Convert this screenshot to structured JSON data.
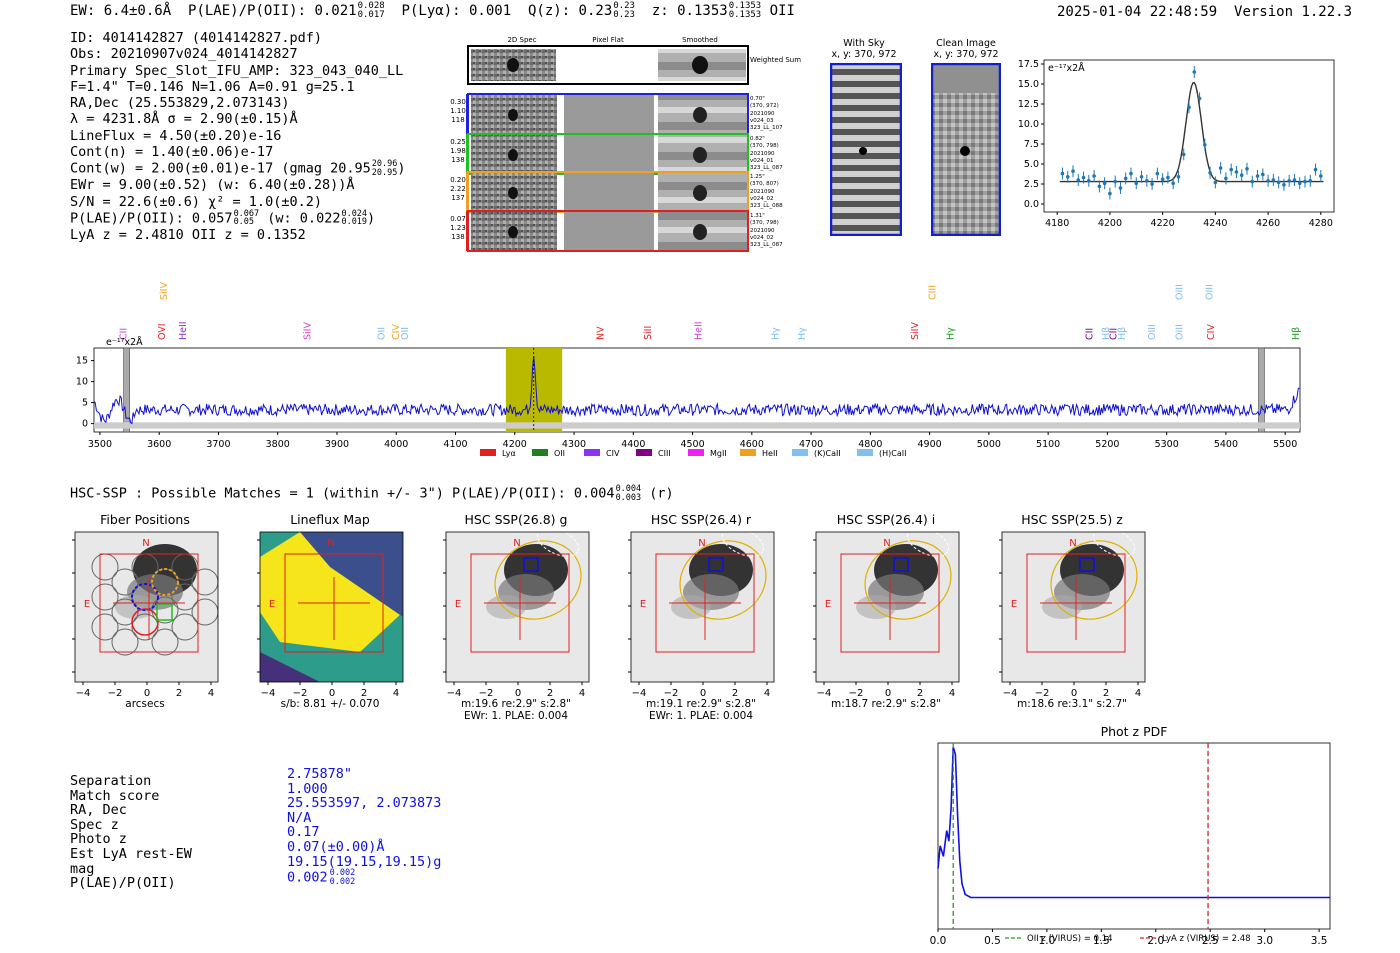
{
  "header": {
    "ew": "EW: 6.4±0.6Å",
    "plae": "P(LAE)/P(OII): 0.021",
    "plae_sup": "0.028",
    "plae_sub": "0.017",
    "plya": "P(Lyα): 0.001",
    "qz": "Q(z): 0.23",
    "qz_sup": "0.23",
    "qz_sub": "0.23",
    "z": "z: 0.1353",
    "z_sup": "0.1353",
    "z_sub": "0.1353",
    "z_line": "OII",
    "timestamp": "2025-01-04 22:48:59",
    "version": "Version 1.22.3"
  },
  "info": {
    "id": "ID: 4014142827 (4014142827.pdf)",
    "obs": "Obs: 20210907v024_4014142827",
    "primary": "Primary Spec_Slot_IFU_AMP: 323_043_040_LL",
    "fit": "F=1.4\"  T=0.146  N=1.06  A=0.91  g=25.1",
    "radec": "RA,Dec (25.553829,2.073143)",
    "lambda": "λ = 4231.8Å  σ = 2.90(±0.15)Å",
    "lineflux": "LineFlux = 4.50(±0.20)e-16",
    "contn": "Cont(n) = 1.40(±0.06)e-17",
    "contw": "Cont(w) = 2.00(±0.01)e-17 (gmag 20.95",
    "contw_sup": "20.96",
    "contw_sub": "20.95",
    "ewr": "EWr = 9.00(±0.52) (w: 6.40(±0.28))Å",
    "sn": "S/N = 22.6(±0.6)  χ² = 1.0(±0.2)",
    "plae": "P(LAE)/P(OII): 0.057",
    "plae_sup": "0.067",
    "plae_sub": "0.05",
    "plae_w": "(w: 0.022",
    "plae_w_sup": "0.024",
    "plae_w_sub": "0.019",
    "lyaz": "LyA z = 2.4810   OII z = 0.1352"
  },
  "cutouts_2d": {
    "col_titles": [
      "2D Spec",
      "Pixel Flat",
      "Smoothed"
    ],
    "weighted_sum": "Weighted Sum",
    "rows": [
      {
        "v1": "0.30",
        "v2": "1.10",
        "v3": "118",
        "r1": "0.70\"",
        "r2": "(370, 972)",
        "r3": "2021090",
        "r4": "v024_03",
        "r5": "323_LL_107",
        "color": "#2020e0"
      },
      {
        "v1": "0.25",
        "v2": "1.98",
        "v3": "138",
        "r1": "0.82\"",
        "r2": "(370, 798)",
        "r3": "2021090",
        "r4": "v024_01",
        "r5": "323_LL_087",
        "color": "#20c020"
      },
      {
        "v1": "0.20",
        "v2": "2.22",
        "v3": "137",
        "r1": "1.25\"",
        "r2": "(370, 807)",
        "r3": "2021090",
        "r4": "v024_02",
        "r5": "323_LL_088",
        "color": "#f0a020"
      },
      {
        "v1": "0.07",
        "v2": "1.23",
        "v3": "138",
        "r1": "1.31\"",
        "r2": "(370, 798)",
        "r3": "2021090",
        "r4": "v024_02",
        "r5": "323_LL_087",
        "color": "#e02020"
      }
    ]
  },
  "sky": {
    "with_sky_title": "With Sky",
    "with_sky_coords": "x, y: 370, 972",
    "clean_title": "Clean Image",
    "clean_coords": "x, y: 370, 972"
  },
  "line_fit": {
    "ylabel": "e⁻¹⁷x2Å",
    "yticks": [
      "0.0",
      "2.5",
      "5.0",
      "7.5",
      "10.0",
      "12.5",
      "15.0",
      "17.5"
    ],
    "xticks": [
      "4180",
      "4200",
      "4220",
      "4240",
      "4260",
      "4280"
    ]
  },
  "spectrum": {
    "ylabel": "e⁻¹⁷x2Å",
    "yticks": [
      "0",
      "5",
      "10",
      "15"
    ],
    "xticks": [
      "3500",
      "3600",
      "3700",
      "3800",
      "3900",
      "4000",
      "4100",
      "4200",
      "4300",
      "4400",
      "4500",
      "4600",
      "4700",
      "4800",
      "4900",
      "5000",
      "5100",
      "5200",
      "5300",
      "5400",
      "5500"
    ],
    "lines": [
      {
        "name": "CII",
        "color": "#d040d0",
        "wl": 3540,
        "row": 1
      },
      {
        "name": "SiIV",
        "color": "#f0a020",
        "wl": 3608,
        "row": 0
      },
      {
        "name": "OVI",
        "color": "#e02020",
        "wl": 3605,
        "row": 1
      },
      {
        "name": "HeII",
        "color": "#9030c0",
        "wl": 3640,
        "row": 1
      },
      {
        "name": "SiIV",
        "color": "#d040d0",
        "wl": 3850,
        "row": 1
      },
      {
        "name": "OII",
        "color": "#80c0f0",
        "wl": 3975,
        "row": 1
      },
      {
        "name": "CIV",
        "color": "#f0a020",
        "wl": 4000,
        "row": 1
      },
      {
        "name": "OII",
        "color": "#80c0f0",
        "wl": 4015,
        "row": 1
      },
      {
        "name": "NV",
        "color": "#e02020",
        "wl": 4345,
        "row": 1
      },
      {
        "name": "SiII",
        "color": "#e02020",
        "wl": 4425,
        "row": 1
      },
      {
        "name": "HeII",
        "color": "#d040d0",
        "wl": 4510,
        "row": 1
      },
      {
        "name": "Hγ",
        "color": "#80c0f0",
        "wl": 4640,
        "row": 1
      },
      {
        "name": "Hγ",
        "color": "#80c0f0",
        "wl": 4685,
        "row": 1
      },
      {
        "name": "SiIV",
        "color": "#e02020",
        "wl": 4875,
        "row": 1
      },
      {
        "name": "CIII",
        "color": "#f0a020",
        "wl": 4905,
        "row": 0
      },
      {
        "name": "Hγ",
        "color": "#20a020",
        "wl": 4935,
        "row": 1
      },
      {
        "name": "CII",
        "color": "#800080",
        "wl": 5170,
        "row": 1
      },
      {
        "name": "Hβ",
        "color": "#80c0f0",
        "wl": 5198,
        "row": 1
      },
      {
        "name": "CII",
        "color": "#800080",
        "wl": 5210,
        "row": 1
      },
      {
        "name": "Hβ",
        "color": "#80c0f0",
        "wl": 5225,
        "row": 1
      },
      {
        "name": "OIII",
        "color": "#80c0f0",
        "wl": 5275,
        "row": 1
      },
      {
        "name": "OIII",
        "color": "#80c0f0",
        "wl": 5322,
        "row": 0
      },
      {
        "name": "OIII",
        "color": "#80c0f0",
        "wl": 5322,
        "row": 1
      },
      {
        "name": "OIII",
        "color": "#80c0f0",
        "wl": 5372,
        "row": 0
      },
      {
        "name": "CIV",
        "color": "#e02020",
        "wl": 5375,
        "row": 1
      },
      {
        "name": "Hβ",
        "color": "#20a020",
        "wl": 5518,
        "row": 1
      }
    ],
    "legend": [
      {
        "name": "Lyα",
        "color": "#e02020"
      },
      {
        "name": "OII",
        "color": "#208020"
      },
      {
        "name": "CIV",
        "color": "#9030f0"
      },
      {
        "name": "CIII",
        "color": "#800080"
      },
      {
        "name": "MgII",
        "color": "#f020f0"
      },
      {
        "name": "HeII",
        "color": "#f0a020"
      },
      {
        "name": "(K)CaII",
        "color": "#80c0f0"
      },
      {
        "name": "(H)CaII",
        "color": "#80c0f0"
      }
    ]
  },
  "hsc": {
    "header": "HSC-SSP : Possible Matches = 1 (within +/- 3\")  P(LAE)/P(OII): 0.004",
    "header_sup": "0.004",
    "header_sub": "0.003",
    "header_tail": "(r)",
    "panels": [
      {
        "title": "Fiber Positions",
        "cap1": "arcsecs",
        "cap2": ""
      },
      {
        "title": "Lineflux Map",
        "cap1": "s/b: 8.81 +/- 0.070",
        "cap2": ""
      },
      {
        "title": "HSC SSP(26.8) g",
        "cap1": "m:19.6   re:2.9\"   s:2.8\"",
        "cap2": "EWr: 1. PLAE: 0.004"
      },
      {
        "title": "HSC SSP(26.4) r",
        "cap1": "m:19.1   re:2.9\"   s:2.8\"",
        "cap2": "EWr: 1. PLAE: 0.004"
      },
      {
        "title": "HSC SSP(26.4) i",
        "cap1": "m:18.7   re:2.9\"   s:2.8\"",
        "cap2": ""
      },
      {
        "title": "HSC SSP(25.5) z",
        "cap1": "m:18.6   re:3.1\"   s:2.7\"",
        "cap2": ""
      }
    ],
    "ticks": [
      "−4",
      "−2",
      "0",
      "2",
      "4"
    ],
    "north": "N",
    "east": "E"
  },
  "match": {
    "labels": [
      "Separation",
      "Match score",
      "RA, Dec",
      "Spec z",
      "Photo z",
      "Est LyA rest-EW",
      "mag",
      "P(LAE)/P(OII)"
    ],
    "values": [
      "2.75878\"",
      "1.000",
      "25.553597, 2.073873",
      "N/A",
      "0.17",
      "0.07(±0.00)Å",
      "19.15(19.15,19.15)g",
      "0.002"
    ],
    "plae_sup": "0.002",
    "plae_sub": "0.002"
  },
  "chart_data": [
    {
      "type": "line",
      "title": "",
      "ylabel": "e-17 x2Å",
      "xlim": [
        4175,
        4285
      ],
      "ylim": [
        -1,
        18
      ],
      "series": [
        {
          "name": "data",
          "x": [
            4182,
            4184,
            4186,
            4188,
            4190,
            4192,
            4194,
            4196,
            4198,
            4200,
            4202,
            4204,
            4206,
            4208,
            4210,
            4212,
            4214,
            4216,
            4218,
            4220,
            4222,
            4224,
            4226,
            4228,
            4230,
            4232,
            4234,
            4236,
            4238,
            4240,
            4242,
            4244,
            4246,
            4248,
            4250,
            4252,
            4254,
            4256,
            4258,
            4260,
            4262,
            4264,
            4266,
            4268,
            4270,
            4272,
            4274,
            4276,
            4278,
            4280
          ],
          "y": [
            3.8,
            3.4,
            4.1,
            3.0,
            3.3,
            2.9,
            3.5,
            2.2,
            2.6,
            1.3,
            2.8,
            2.0,
            3.2,
            3.8,
            2.6,
            3.4,
            2.9,
            2.5,
            3.8,
            3.1,
            3.3,
            2.6,
            3.4,
            6.2,
            12.1,
            16.5,
            13.2,
            7.4,
            3.9,
            2.7,
            4.5,
            3.2,
            4.3,
            4.0,
            3.6,
            4.4,
            2.8,
            3.5,
            3.7,
            2.9,
            3.0,
            2.7,
            2.4,
            2.9,
            3.0,
            2.6,
            2.8,
            2.9,
            4.3,
            3.5
          ]
        },
        {
          "name": "fit",
          "type": "gaussian",
          "center": 4231.8,
          "sigma": 2.9,
          "amplitude": 12.4,
          "continuum": 2.8
        }
      ],
      "xticks": [
        4180,
        4200,
        4220,
        4240,
        4260,
        4280
      ],
      "yticks": [
        0.0,
        2.5,
        5.0,
        7.5,
        10.0,
        12.5,
        15.0,
        17.5
      ]
    },
    {
      "type": "line",
      "title": "",
      "ylabel": "e-17 x2Å",
      "xlim": [
        3490,
        5525
      ],
      "ylim": [
        -2,
        18
      ],
      "series": [
        {
          "name": "spectrum",
          "baseline": 3.3,
          "peak_at": 4232,
          "peak_value": 16.5
        }
      ],
      "highlight": [
        4185,
        4280
      ],
      "masked": [
        [
          3540,
          3550
        ],
        [
          5455,
          5465
        ]
      ]
    },
    {
      "type": "line",
      "title": "Phot z PDF",
      "xlim": [
        0.0,
        3.6
      ],
      "xticks": [
        0.0,
        0.5,
        1.0,
        1.5,
        2.0,
        2.5,
        3.0,
        3.5
      ],
      "series": [
        {
          "name": "PDF",
          "x": [
            0.0,
            0.02,
            0.05,
            0.08,
            0.1,
            0.12,
            0.14,
            0.16,
            0.18,
            0.2,
            0.22,
            0.25,
            0.3,
            0.5,
            1.0,
            2.0,
            3.6
          ],
          "y": [
            0.2,
            0.35,
            0.28,
            0.45,
            0.38,
            0.6,
            1.0,
            0.95,
            0.55,
            0.25,
            0.1,
            0.03,
            0.01,
            0.01,
            0.01,
            0.01,
            0.01
          ]
        }
      ],
      "vlines": [
        {
          "label": "OII z (VIRUS) = 0.14",
          "x": 0.14,
          "color": "#20a020"
        },
        {
          "label": "LyA z (VIRUS) = 2.48",
          "x": 2.48,
          "color": "#e02020"
        }
      ]
    }
  ]
}
